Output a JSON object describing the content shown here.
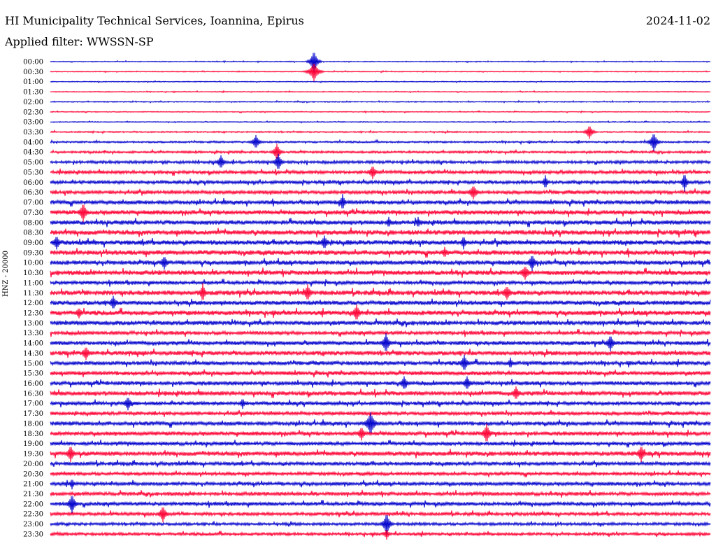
{
  "header": {
    "station": "HI Municipality Technical Services, Ioannina, Epirus",
    "date": "2024-11-02",
    "filter": "Applied filter: WWSSN-SP"
  },
  "chart_data": {
    "type": "line",
    "subtype": "helicorder",
    "ylabel": "HNZ - 20000",
    "colors": {
      "even": "#0000cc",
      "odd": "#ff0033",
      "event": "#cc00cc"
    },
    "times": [
      "00:00",
      "00:30",
      "01:00",
      "01:30",
      "02:00",
      "02:30",
      "03:00",
      "03:30",
      "04:00",
      "04:30",
      "05:00",
      "05:30",
      "06:00",
      "06:30",
      "07:00",
      "07:30",
      "08:00",
      "08:30",
      "09:00",
      "09:30",
      "10:00",
      "10:30",
      "11:00",
      "11:30",
      "12:00",
      "12:30",
      "13:00",
      "13:30",
      "14:00",
      "14:30",
      "15:00",
      "15:30",
      "16:00",
      "16:30",
      "17:00",
      "17:30",
      "18:00",
      "18:30",
      "19:00",
      "19:30",
      "20:00",
      "20:30",
      "21:00",
      "21:30",
      "22:00",
      "22:30",
      "23:00",
      "23:30"
    ],
    "noise": [
      0.5,
      0.5,
      0.5,
      0.5,
      0.6,
      0.5,
      0.5,
      0.8,
      1.0,
      1.2,
      1.6,
      1.8,
      1.8,
      2.0,
      2.2,
      2.4,
      2.4,
      2.6,
      2.6,
      2.6,
      2.4,
      2.6,
      2.0,
      2.6,
      2.4,
      2.6,
      2.4,
      2.0,
      2.2,
      2.4,
      2.2,
      2.2,
      2.2,
      2.4,
      2.0,
      2.0,
      2.2,
      2.2,
      2.0,
      2.4,
      2.0,
      1.8,
      2.0,
      2.0,
      2.0,
      1.8,
      1.6,
      1.6
    ],
    "events": [
      {
        "row": 0,
        "x": 449,
        "amp": 16,
        "w": 4
      },
      {
        "row": 1,
        "x": 449,
        "amp": 14,
        "w": 5
      },
      {
        "row": 7,
        "x": 843,
        "amp": 10,
        "w": 4
      },
      {
        "row": 8,
        "x": 366,
        "amp": 10,
        "w": 4
      },
      {
        "row": 8,
        "x": 935,
        "amp": 14,
        "w": 4
      },
      {
        "row": 9,
        "x": 396,
        "amp": 12,
        "w": 4
      },
      {
        "row": 10,
        "x": 316,
        "amp": 10,
        "w": 4
      },
      {
        "row": 10,
        "x": 398,
        "amp": 12,
        "w": 4
      },
      {
        "row": 11,
        "x": 533,
        "amp": 10,
        "w": 4
      },
      {
        "row": 12,
        "x": 780,
        "amp": 10,
        "w": 3
      },
      {
        "row": 12,
        "x": 979,
        "amp": 14,
        "w": 3
      },
      {
        "row": 13,
        "x": 677,
        "amp": 10,
        "w": 5
      },
      {
        "row": 14,
        "x": 490,
        "amp": 12,
        "w": 3
      },
      {
        "row": 15,
        "x": 119,
        "amp": 14,
        "w": 4
      },
      {
        "row": 16,
        "x": 556,
        "amp": 8,
        "w": 3
      },
      {
        "row": 16,
        "x": 598,
        "amp": 8,
        "w": 3
      },
      {
        "row": 18,
        "x": 81,
        "amp": 10,
        "w": 4
      },
      {
        "row": 18,
        "x": 464,
        "amp": 10,
        "w": 4
      },
      {
        "row": 18,
        "x": 663,
        "amp": 10,
        "w": 3
      },
      {
        "row": 19,
        "x": 636,
        "amp": 8,
        "w": 3
      },
      {
        "row": 20,
        "x": 235,
        "amp": 10,
        "w": 4
      },
      {
        "row": 20,
        "x": 761,
        "amp": 12,
        "w": 4
      },
      {
        "row": 21,
        "x": 751,
        "amp": 10,
        "w": 5
      },
      {
        "row": 23,
        "x": 290,
        "amp": 14,
        "w": 3
      },
      {
        "row": 23,
        "x": 440,
        "amp": 12,
        "w": 4
      },
      {
        "row": 23,
        "x": 725,
        "amp": 10,
        "w": 5
      },
      {
        "row": 24,
        "x": 162,
        "amp": 10,
        "w": 4
      },
      {
        "row": 25,
        "x": 113,
        "amp": 8,
        "w": 4
      },
      {
        "row": 25,
        "x": 510,
        "amp": 12,
        "w": 4
      },
      {
        "row": 28,
        "x": 552,
        "amp": 14,
        "w": 4
      },
      {
        "row": 28,
        "x": 873,
        "amp": 12,
        "w": 4
      },
      {
        "row": 29,
        "x": 123,
        "amp": 10,
        "w": 4
      },
      {
        "row": 30,
        "x": 664,
        "amp": 12,
        "w": 4
      },
      {
        "row": 30,
        "x": 730,
        "amp": 8,
        "w": 3
      },
      {
        "row": 32,
        "x": 578,
        "amp": 10,
        "w": 4
      },
      {
        "row": 32,
        "x": 668,
        "amp": 10,
        "w": 4
      },
      {
        "row": 33,
        "x": 738,
        "amp": 10,
        "w": 4
      },
      {
        "row": 34,
        "x": 183,
        "amp": 10,
        "w": 4
      },
      {
        "row": 34,
        "x": 347,
        "amp": 8,
        "w": 3
      },
      {
        "row": 36,
        "x": 530,
        "amp": 16,
        "w": 5
      },
      {
        "row": 37,
        "x": 696,
        "amp": 14,
        "w": 4
      },
      {
        "row": 37,
        "x": 517,
        "amp": 10,
        "w": 4
      },
      {
        "row": 39,
        "x": 101,
        "amp": 12,
        "w": 4
      },
      {
        "row": 39,
        "x": 917,
        "amp": 12,
        "w": 4
      },
      {
        "row": 42,
        "x": 103,
        "amp": 8,
        "w": 3
      },
      {
        "row": 44,
        "x": 103,
        "amp": 14,
        "w": 4
      },
      {
        "row": 45,
        "x": 233,
        "amp": 12,
        "w": 4
      },
      {
        "row": 46,
        "x": 553,
        "amp": 16,
        "w": 4
      },
      {
        "row": 47,
        "x": 553,
        "amp": 8,
        "w": 3
      }
    ]
  }
}
